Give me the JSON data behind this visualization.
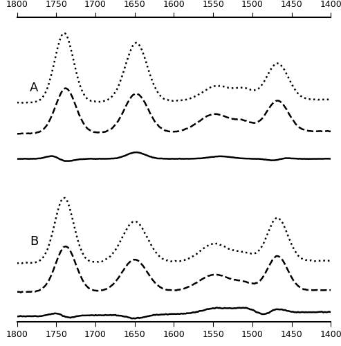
{
  "xmin": 1400,
  "xmax": 1800,
  "xticks": [
    1800,
    1750,
    1700,
    1650,
    1600,
    1550,
    1500,
    1450,
    1400
  ],
  "label_A": "A",
  "label_B": "B",
  "background_color": "#ffffff",
  "line_color": "#000000"
}
